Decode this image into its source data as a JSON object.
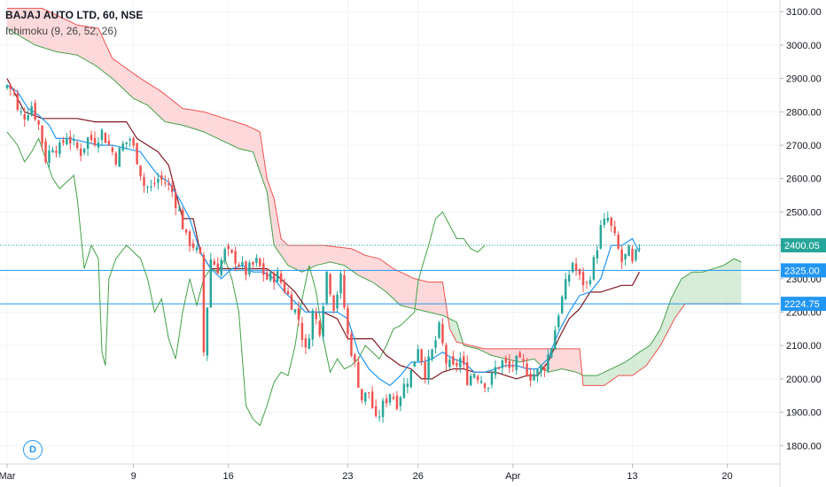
{
  "header": {
    "title": "BAJAJ AUTO LTD, 60, NSE",
    "indicator": "Ichimoku (9, 26, 52, 26)"
  },
  "d_button": "D",
  "colors": {
    "up": "#26a69a",
    "down": "#ef5350",
    "conversion": "#2196f3",
    "base": "#801922",
    "lagging": "#43a047",
    "spanA": "#43a047",
    "spanB": "#ef5350",
    "cloudBull": "#c8e6c9",
    "cloudBear": "#fccbcd",
    "hline": "#2196f3",
    "priceLabelGreen": "#26a69a",
    "priceLabelBlue": "#2196f3"
  },
  "chart_data": {
    "type": "candlestick",
    "y_ticks": [
      "3100.00",
      "3000.00",
      "2900.00",
      "2800.00",
      "2700.00",
      "2600.00",
      "2500.00",
      "2400.00",
      "2300.00",
      "2200.00",
      "2100.00",
      "2000.00",
      "1900.00",
      "1800.00"
    ],
    "ylim": [
      1745,
      3135
    ],
    "x_ticks": [
      {
        "label": "Mar",
        "i": 0
      },
      {
        "label": "9",
        "i": 36
      },
      {
        "label": "16",
        "i": 63
      },
      {
        "label": "23",
        "i": 97
      },
      {
        "label": "26",
        "i": 117
      },
      {
        "label": "Apr",
        "i": 144
      },
      {
        "label": "13",
        "i": 178
      },
      {
        "label": "20",
        "i": 205
      }
    ],
    "x_range": [
      -2,
      220
    ],
    "price_labels": [
      {
        "value": 2400.05,
        "text": "2400.05",
        "color": "#26a69a"
      },
      {
        "value": 2325.0,
        "text": "2325.00",
        "color": "#2196f3"
      },
      {
        "value": 2224.75,
        "text": "2224.75",
        "color": "#2196f3"
      }
    ],
    "horizontal_lines": [
      2325.0,
      2224.75
    ],
    "dotted_line": 2400.05,
    "close_keypoints": [
      [
        0,
        2880
      ],
      [
        2,
        2860
      ],
      [
        3,
        2800
      ],
      [
        5,
        2790
      ],
      [
        7,
        2820
      ],
      [
        9,
        2760
      ],
      [
        11,
        2660
      ],
      [
        13,
        2700
      ],
      [
        15,
        2690
      ],
      [
        17,
        2730
      ],
      [
        19,
        2700
      ],
      [
        21,
        2680
      ],
      [
        23,
        2720
      ],
      [
        25,
        2715
      ],
      [
        27,
        2740
      ],
      [
        29,
        2700
      ],
      [
        31,
        2660
      ],
      [
        33,
        2700
      ],
      [
        35,
        2720
      ],
      [
        37,
        2660
      ],
      [
        39,
        2580
      ],
      [
        41,
        2570
      ],
      [
        43,
        2600
      ],
      [
        45,
        2590
      ],
      [
        47,
        2560
      ],
      [
        49,
        2500
      ],
      [
        51,
        2420
      ],
      [
        53,
        2400
      ],
      [
        55,
        2360
      ],
      [
        56,
        2080
      ],
      [
        58,
        2360
      ],
      [
        60,
        2330
      ],
      [
        62,
        2380
      ],
      [
        65,
        2360
      ],
      [
        68,
        2320
      ],
      [
        71,
        2350
      ],
      [
        74,
        2300
      ],
      [
        77,
        2310
      ],
      [
        80,
        2250
      ],
      [
        83,
        2180
      ],
      [
        85,
        2080
      ],
      [
        87,
        2200
      ],
      [
        89,
        2150
      ],
      [
        91,
        2320
      ],
      [
        93,
        2220
      ],
      [
        95,
        2300
      ],
      [
        97,
        2130
      ],
      [
        99,
        2040
      ],
      [
        101,
        1940
      ],
      [
        103,
        1960
      ],
      [
        105,
        1870
      ],
      [
        107,
        1920
      ],
      [
        109,
        1960
      ],
      [
        111,
        1930
      ],
      [
        113,
        1980
      ],
      [
        115,
        2020
      ],
      [
        117,
        2100
      ],
      [
        119,
        2020
      ],
      [
        121,
        2080
      ],
      [
        123,
        2150
      ],
      [
        125,
        2050
      ],
      [
        127,
        2030
      ],
      [
        129,
        2060
      ],
      [
        131,
        2000
      ],
      [
        133,
        2020
      ],
      [
        135,
        2000
      ],
      [
        137,
        1980
      ],
      [
        139,
        2030
      ],
      [
        141,
        2050
      ],
      [
        143,
        2030
      ],
      [
        145,
        2050
      ],
      [
        147,
        2040
      ],
      [
        149,
        2010
      ],
      [
        151,
        2020
      ],
      [
        153,
        2040
      ],
      [
        155,
        2100
      ],
      [
        157,
        2200
      ],
      [
        159,
        2280
      ],
      [
        161,
        2350
      ],
      [
        163,
        2300
      ],
      [
        165,
        2280
      ],
      [
        167,
        2350
      ],
      [
        169,
        2450
      ],
      [
        171,
        2480
      ],
      [
        173,
        2420
      ],
      [
        175,
        2350
      ],
      [
        177,
        2380
      ],
      [
        178,
        2340
      ],
      [
        180,
        2400
      ]
    ],
    "conversion_keypoints": [
      [
        0,
        2880
      ],
      [
        3,
        2860
      ],
      [
        6,
        2810
      ],
      [
        9,
        2790
      ],
      [
        12,
        2760
      ],
      [
        14,
        2720
      ],
      [
        18,
        2720
      ],
      [
        22,
        2710
      ],
      [
        26,
        2700
      ],
      [
        30,
        2700
      ],
      [
        34,
        2690
      ],
      [
        38,
        2680
      ],
      [
        40,
        2650
      ],
      [
        43,
        2610
      ],
      [
        46,
        2590
      ],
      [
        49,
        2540
      ],
      [
        52,
        2480
      ],
      [
        55,
        2380
      ],
      [
        58,
        2330
      ],
      [
        61,
        2300
      ],
      [
        64,
        2330
      ],
      [
        67,
        2340
      ],
      [
        70,
        2320
      ],
      [
        73,
        2320
      ],
      [
        76,
        2300
      ],
      [
        79,
        2260
      ],
      [
        82,
        2230
      ],
      [
        85,
        2200
      ],
      [
        88,
        2200
      ],
      [
        91,
        2200
      ],
      [
        94,
        2200
      ],
      [
        97,
        2180
      ],
      [
        100,
        2080
      ],
      [
        103,
        2030
      ],
      [
        106,
        2000
      ],
      [
        109,
        1980
      ],
      [
        112,
        2010
      ],
      [
        115,
        2050
      ],
      [
        118,
        2050
      ],
      [
        121,
        2060
      ],
      [
        124,
        2080
      ],
      [
        127,
        2060
      ],
      [
        130,
        2050
      ],
      [
        133,
        2020
      ],
      [
        136,
        2020
      ],
      [
        139,
        2030
      ],
      [
        142,
        2040
      ],
      [
        145,
        2040
      ],
      [
        148,
        2030
      ],
      [
        151,
        2030
      ],
      [
        154,
        2060
      ],
      [
        157,
        2140
      ],
      [
        160,
        2200
      ],
      [
        163,
        2250
      ],
      [
        166,
        2260
      ],
      [
        169,
        2300
      ],
      [
        172,
        2400
      ],
      [
        175,
        2400
      ],
      [
        178,
        2420
      ],
      [
        180,
        2380
      ]
    ],
    "base_keypoints": [
      [
        0,
        2900
      ],
      [
        5,
        2800
      ],
      [
        10,
        2780
      ],
      [
        15,
        2780
      ],
      [
        20,
        2780
      ],
      [
        25,
        2770
      ],
      [
        30,
        2770
      ],
      [
        34,
        2770
      ],
      [
        37,
        2720
      ],
      [
        40,
        2700
      ],
      [
        43,
        2680
      ],
      [
        46,
        2640
      ],
      [
        48,
        2560
      ],
      [
        50,
        2480
      ],
      [
        53,
        2480
      ],
      [
        55,
        2380
      ],
      [
        58,
        2330
      ],
      [
        62,
        2330
      ],
      [
        66,
        2330
      ],
      [
        70,
        2330
      ],
      [
        74,
        2330
      ],
      [
        78,
        2300
      ],
      [
        82,
        2260
      ],
      [
        86,
        2200
      ],
      [
        90,
        2200
      ],
      [
        94,
        2180
      ],
      [
        97,
        2120
      ],
      [
        100,
        2120
      ],
      [
        104,
        2120
      ],
      [
        108,
        2070
      ],
      [
        112,
        2040
      ],
      [
        115,
        2030
      ],
      [
        118,
        2000
      ],
      [
        121,
        2000
      ],
      [
        124,
        2020
      ],
      [
        127,
        2030
      ],
      [
        130,
        2030
      ],
      [
        133,
        2020
      ],
      [
        136,
        2020
      ],
      [
        139,
        2020
      ],
      [
        142,
        2010
      ],
      [
        145,
        2000
      ],
      [
        148,
        2010
      ],
      [
        151,
        2010
      ],
      [
        154,
        2050
      ],
      [
        157,
        2120
      ],
      [
        160,
        2180
      ],
      [
        163,
        2210
      ],
      [
        166,
        2260
      ],
      [
        169,
        2260
      ],
      [
        172,
        2270
      ],
      [
        175,
        2280
      ],
      [
        178,
        2280
      ],
      [
        180,
        2320
      ]
    ],
    "lagging_keypoints": [
      [
        0,
        2740
      ],
      [
        3,
        2700
      ],
      [
        5,
        2650
      ],
      [
        7,
        2680
      ],
      [
        9,
        2720
      ],
      [
        11,
        2660
      ],
      [
        13,
        2600
      ],
      [
        15,
        2570
      ],
      [
        17,
        2590
      ],
      [
        19,
        2610
      ],
      [
        20,
        2540
      ],
      [
        22,
        2330
      ],
      [
        24,
        2400
      ],
      [
        26,
        2360
      ],
      [
        27,
        2080
      ],
      [
        28,
        2040
      ],
      [
        29,
        2300
      ],
      [
        31,
        2360
      ],
      [
        34,
        2400
      ],
      [
        36,
        2380
      ],
      [
        38,
        2360
      ],
      [
        40,
        2300
      ],
      [
        42,
        2200
      ],
      [
        44,
        2240
      ],
      [
        46,
        2120
      ],
      [
        48,
        2060
      ],
      [
        50,
        2200
      ],
      [
        52,
        2300
      ],
      [
        54,
        2220
      ],
      [
        56,
        2300
      ],
      [
        58,
        2330
      ],
      [
        60,
        2320
      ],
      [
        62,
        2360
      ],
      [
        64,
        2300
      ],
      [
        66,
        2200
      ],
      [
        68,
        1920
      ],
      [
        70,
        1880
      ],
      [
        72,
        1860
      ],
      [
        74,
        1920
      ],
      [
        76,
        1990
      ],
      [
        78,
        2020
      ],
      [
        80,
        2010
      ],
      [
        82,
        2100
      ],
      [
        84,
        2240
      ],
      [
        86,
        2340
      ],
      [
        88,
        2260
      ],
      [
        90,
        2120
      ],
      [
        92,
        2020
      ],
      [
        94,
        2060
      ],
      [
        96,
        2030
      ],
      [
        98,
        2040
      ],
      [
        100,
        2060
      ],
      [
        102,
        2100
      ],
      [
        104,
        2080
      ],
      [
        106,
        2060
      ],
      [
        108,
        2100
      ],
      [
        110,
        2150
      ],
      [
        112,
        2160
      ],
      [
        114,
        2180
      ],
      [
        116,
        2200
      ],
      [
        117,
        2290
      ],
      [
        118,
        2330
      ],
      [
        120,
        2400
      ],
      [
        122,
        2480
      ],
      [
        124,
        2500
      ],
      [
        126,
        2460
      ],
      [
        128,
        2420
      ],
      [
        130,
        2420
      ],
      [
        132,
        2390
      ],
      [
        134,
        2380
      ],
      [
        136,
        2400
      ]
    ],
    "span_a_keypoints": [
      [
        0,
        3050
      ],
      [
        8,
        3000
      ],
      [
        14,
        2980
      ],
      [
        20,
        2970
      ],
      [
        25,
        2940
      ],
      [
        30,
        2900
      ],
      [
        36,
        2840
      ],
      [
        40,
        2820
      ],
      [
        45,
        2770
      ],
      [
        50,
        2760
      ],
      [
        56,
        2740
      ],
      [
        62,
        2710
      ],
      [
        66,
        2690
      ],
      [
        70,
        2680
      ],
      [
        74,
        2560
      ],
      [
        76,
        2400
      ],
      [
        80,
        2340
      ],
      [
        84,
        2320
      ],
      [
        88,
        2340
      ],
      [
        92,
        2350
      ],
      [
        96,
        2340
      ],
      [
        100,
        2310
      ],
      [
        104,
        2290
      ],
      [
        108,
        2260
      ],
      [
        112,
        2220
      ],
      [
        116,
        2210
      ],
      [
        120,
        2200
      ],
      [
        124,
        2190
      ],
      [
        128,
        2170
      ],
      [
        130,
        2100
      ],
      [
        134,
        2090
      ],
      [
        138,
        2070
      ],
      [
        142,
        2060
      ],
      [
        146,
        2050
      ],
      [
        150,
        2060
      ],
      [
        154,
        2020
      ],
      [
        158,
        2030
      ],
      [
        162,
        2020
      ],
      [
        164,
        2010
      ],
      [
        168,
        2010
      ],
      [
        172,
        2030
      ],
      [
        176,
        2050
      ],
      [
        180,
        2080
      ],
      [
        183,
        2100
      ],
      [
        186,
        2150
      ],
      [
        189,
        2240
      ],
      [
        192,
        2300
      ],
      [
        195,
        2320
      ],
      [
        198,
        2320
      ],
      [
        201,
        2330
      ],
      [
        204,
        2340
      ],
      [
        207,
        2360
      ],
      [
        209,
        2350
      ]
    ],
    "span_b_keypoints": [
      [
        0,
        3110
      ],
      [
        10,
        3110
      ],
      [
        20,
        3060
      ],
      [
        26,
        3050
      ],
      [
        30,
        2960
      ],
      [
        34,
        2930
      ],
      [
        38,
        2900
      ],
      [
        44,
        2860
      ],
      [
        50,
        2810
      ],
      [
        56,
        2800
      ],
      [
        62,
        2780
      ],
      [
        68,
        2760
      ],
      [
        72,
        2740
      ],
      [
        74,
        2600
      ],
      [
        76,
        2540
      ],
      [
        78,
        2420
      ],
      [
        80,
        2400
      ],
      [
        90,
        2400
      ],
      [
        98,
        2390
      ],
      [
        102,
        2370
      ],
      [
        106,
        2360
      ],
      [
        110,
        2330
      ],
      [
        116,
        2300
      ],
      [
        120,
        2290
      ],
      [
        124,
        2290
      ],
      [
        126,
        2150
      ],
      [
        128,
        2110
      ],
      [
        132,
        2100
      ],
      [
        136,
        2090
      ],
      [
        140,
        2090
      ],
      [
        144,
        2090
      ],
      [
        148,
        2090
      ],
      [
        152,
        2090
      ],
      [
        158,
        2090
      ],
      [
        163,
        2090
      ],
      [
        164,
        1980
      ],
      [
        170,
        1980
      ],
      [
        174,
        2010
      ],
      [
        178,
        2010
      ],
      [
        182,
        2040
      ],
      [
        186,
        2100
      ],
      [
        190,
        2180
      ],
      [
        193,
        2225
      ],
      [
        197,
        2225
      ],
      [
        201,
        2225
      ],
      [
        205,
        2225
      ],
      [
        209,
        2225
      ]
    ],
    "last_index": 180,
    "xlabel": "",
    "ylabel": ""
  }
}
